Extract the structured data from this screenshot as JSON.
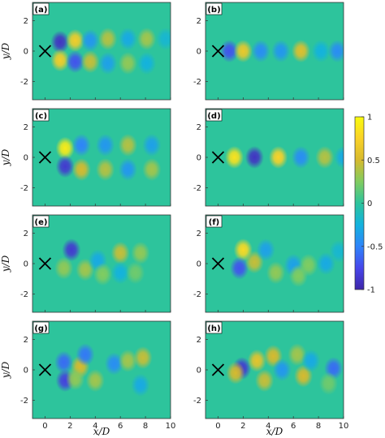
{
  "figure": {
    "xlabel": "x/D",
    "ylabel": "y/D",
    "colorbar": {
      "ticks": [
        1,
        0.5,
        0,
        -0.5,
        -1
      ],
      "tick_labels": [
        "1",
        "0.5",
        "0",
        "-0.5",
        "-1"
      ],
      "colormap": [
        "#3e26a8",
        "#4746eb",
        "#2e84fa",
        "#13b2de",
        "#2dc49c",
        "#81cc60",
        "#d7ba2e",
        "#fad228",
        "#f9fb0e"
      ]
    }
  },
  "chart_data": [
    {
      "panel": "(a)",
      "type": "heatmap",
      "xlim": [
        -1,
        10
      ],
      "ylim": [
        -3.2,
        3.2
      ],
      "yticks": [
        -2,
        0,
        2
      ],
      "marker": {
        "symbol": "X",
        "x": 0,
        "y": 0
      },
      "blobs": [
        {
          "x": 1.2,
          "y": 0.6,
          "value": -0.9
        },
        {
          "x": 1.2,
          "y": -0.6,
          "value": 0.7
        },
        {
          "x": 2.4,
          "y": 0.7,
          "value": 0.7
        },
        {
          "x": 2.4,
          "y": -0.7,
          "value": -0.7
        },
        {
          "x": 3.6,
          "y": 0.7,
          "value": -0.4
        },
        {
          "x": 3.6,
          "y": -0.7,
          "value": 0.45
        },
        {
          "x": 5.0,
          "y": 0.8,
          "value": 0.4
        },
        {
          "x": 5.0,
          "y": -0.8,
          "value": -0.35
        },
        {
          "x": 6.6,
          "y": 0.8,
          "value": -0.3
        },
        {
          "x": 6.6,
          "y": -0.8,
          "value": 0.3
        },
        {
          "x": 8.1,
          "y": 0.8,
          "value": 0.35
        },
        {
          "x": 8.1,
          "y": -0.8,
          "value": -0.25
        },
        {
          "x": 9.6,
          "y": 0.8,
          "value": -0.2
        }
      ]
    },
    {
      "panel": "(b)",
      "type": "heatmap",
      "xlim": [
        -1,
        10
      ],
      "ylim": [
        -3.2,
        3.2
      ],
      "yticks": [
        -2,
        0,
        2
      ],
      "marker": {
        "symbol": "X",
        "x": 0,
        "y": 0
      },
      "blobs": [
        {
          "x": 0.9,
          "y": 0.0,
          "value": -0.7
        },
        {
          "x": 2.0,
          "y": 0.0,
          "value": 0.65
        },
        {
          "x": 3.4,
          "y": 0.0,
          "value": -0.45
        },
        {
          "x": 5.0,
          "y": 0.0,
          "value": -0.4
        },
        {
          "x": 6.6,
          "y": 0.0,
          "value": 0.55
        },
        {
          "x": 8.2,
          "y": 0.0,
          "value": -0.25
        },
        {
          "x": 9.5,
          "y": 0.0,
          "value": -0.45
        }
      ]
    },
    {
      "panel": "(c)",
      "type": "heatmap",
      "xlim": [
        -1,
        10
      ],
      "ylim": [
        -3.2,
        3.2
      ],
      "yticks": [
        -2,
        0,
        2
      ],
      "marker": {
        "symbol": "X",
        "x": 0,
        "y": 0
      },
      "blobs": [
        {
          "x": 1.6,
          "y": 0.6,
          "value": 0.9
        },
        {
          "x": 1.6,
          "y": -0.6,
          "value": -0.85
        },
        {
          "x": 2.9,
          "y": 0.8,
          "value": -0.5
        },
        {
          "x": 2.9,
          "y": -0.8,
          "value": 0.5
        },
        {
          "x": 4.8,
          "y": 0.8,
          "value": -0.4
        },
        {
          "x": 4.8,
          "y": -0.8,
          "value": 0.4
        },
        {
          "x": 6.6,
          "y": 0.8,
          "value": 0.4
        },
        {
          "x": 6.6,
          "y": -0.8,
          "value": -0.4
        },
        {
          "x": 8.5,
          "y": 0.8,
          "value": -0.35
        },
        {
          "x": 8.5,
          "y": -0.8,
          "value": 0.35
        }
      ]
    },
    {
      "panel": "(d)",
      "type": "heatmap",
      "xlim": [
        -1,
        10
      ],
      "ylim": [
        -3.2,
        3.2
      ],
      "yticks": [
        -2,
        0,
        2
      ],
      "marker": {
        "symbol": "X",
        "x": 0,
        "y": 0
      },
      "blobs": [
        {
          "x": 1.3,
          "y": 0.0,
          "value": 0.85
        },
        {
          "x": 2.9,
          "y": 0.0,
          "value": -0.9
        },
        {
          "x": 4.8,
          "y": 0.0,
          "value": 0.75
        },
        {
          "x": 6.5,
          "y": 0.0,
          "value": 0.0
        },
        {
          "x": 6.6,
          "y": 0.0,
          "value": -0.45
        },
        {
          "x": 8.5,
          "y": 0.0,
          "value": 0.4
        },
        {
          "x": 10.0,
          "y": 0.0,
          "value": -0.3
        }
      ]
    },
    {
      "panel": "(e)",
      "type": "heatmap",
      "xlim": [
        -1,
        10
      ],
      "ylim": [
        -3.2,
        3.2
      ],
      "yticks": [
        -2,
        0,
        2
      ],
      "marker": {
        "symbol": "X",
        "x": 0,
        "y": 0
      },
      "blobs": [
        {
          "x": 2.1,
          "y": 0.9,
          "value": -0.85
        },
        {
          "x": 1.5,
          "y": -0.3,
          "value": 0.3
        },
        {
          "x": 3.2,
          "y": -0.4,
          "value": 0.35
        },
        {
          "x": 4.2,
          "y": 0.2,
          "value": -0.3
        },
        {
          "x": 6.0,
          "y": 0.7,
          "value": 0.45
        },
        {
          "x": 7.6,
          "y": 0.7,
          "value": 0.3
        },
        {
          "x": 6.0,
          "y": -0.6,
          "value": -0.25
        },
        {
          "x": 7.2,
          "y": -0.6,
          "value": 0.2
        },
        {
          "x": 4.6,
          "y": -0.7,
          "value": 0.25
        }
      ]
    },
    {
      "panel": "(f)",
      "type": "heatmap",
      "xlim": [
        -1,
        10
      ],
      "ylim": [
        -3.2,
        3.2
      ],
      "yticks": [
        -2,
        0,
        2
      ],
      "marker": {
        "symbol": "X",
        "x": 0,
        "y": 0
      },
      "blobs": [
        {
          "x": 2.0,
          "y": 0.9,
          "value": 0.8
        },
        {
          "x": 1.7,
          "y": -0.3,
          "value": -0.7
        },
        {
          "x": 2.9,
          "y": 0.1,
          "value": 0.45
        },
        {
          "x": 3.8,
          "y": 0.9,
          "value": -0.35
        },
        {
          "x": 4.6,
          "y": -0.6,
          "value": 0.3
        },
        {
          "x": 6.0,
          "y": -0.1,
          "value": -0.35
        },
        {
          "x": 6.4,
          "y": -0.8,
          "value": 0.25
        },
        {
          "x": 7.2,
          "y": -0.1,
          "value": 0.25
        },
        {
          "x": 8.6,
          "y": 0.0,
          "value": -0.3
        },
        {
          "x": 9.6,
          "y": 0.8,
          "value": -0.2
        }
      ]
    },
    {
      "panel": "(g)",
      "type": "heatmap",
      "xlim": [
        -1,
        10
      ],
      "ylim": [
        -3.2,
        3.2
      ],
      "yticks": [
        -2,
        0,
        2
      ],
      "marker": {
        "symbol": "X",
        "x": 0,
        "y": 0
      },
      "blobs": [
        {
          "x": 1.5,
          "y": 0.5,
          "value": -0.6
        },
        {
          "x": 1.6,
          "y": -0.7,
          "value": -0.8
        },
        {
          "x": 2.8,
          "y": 0.2,
          "value": 0.5
        },
        {
          "x": 3.2,
          "y": 1.0,
          "value": -0.55
        },
        {
          "x": 4.0,
          "y": -0.7,
          "value": 0.35
        },
        {
          "x": 5.5,
          "y": 0.4,
          "value": -0.45
        },
        {
          "x": 6.6,
          "y": 0.6,
          "value": 0.35
        },
        {
          "x": 7.8,
          "y": 0.8,
          "value": 0.45
        },
        {
          "x": 7.6,
          "y": -1.0,
          "value": -0.3
        },
        {
          "x": 2.4,
          "y": -0.6,
          "value": 0.3
        }
      ]
    },
    {
      "panel": "(h)",
      "type": "heatmap",
      "xlim": [
        -1,
        10
      ],
      "ylim": [
        -3.2,
        3.2
      ],
      "yticks": [
        -2,
        0,
        2
      ],
      "marker": {
        "symbol": "X",
        "x": 0,
        "y": 0
      },
      "blobs": [
        {
          "x": 1.9,
          "y": 0.1,
          "value": -0.85
        },
        {
          "x": 1.4,
          "y": -0.2,
          "value": 0.5
        },
        {
          "x": 3.1,
          "y": 0.6,
          "value": 0.6
        },
        {
          "x": 3.7,
          "y": -0.7,
          "value": 0.45
        },
        {
          "x": 4.4,
          "y": 0.9,
          "value": 0.5
        },
        {
          "x": 5.1,
          "y": 0.0,
          "value": -0.4
        },
        {
          "x": 6.3,
          "y": 1.0,
          "value": 0.35
        },
        {
          "x": 6.8,
          "y": -0.4,
          "value": 0.5
        },
        {
          "x": 7.4,
          "y": 0.6,
          "value": -0.3
        },
        {
          "x": 9.2,
          "y": 0.1,
          "value": -0.6
        },
        {
          "x": 8.8,
          "y": -0.9,
          "value": 0.2
        }
      ]
    }
  ]
}
